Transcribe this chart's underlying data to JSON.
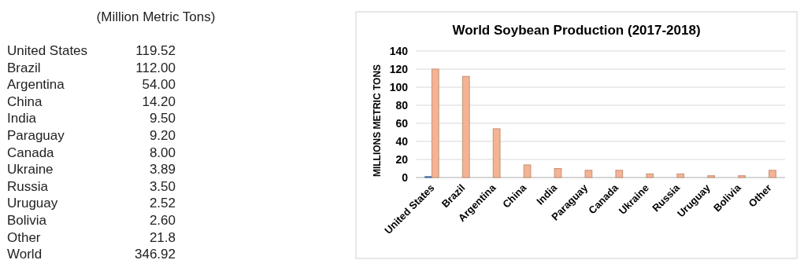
{
  "chart_data": [
    {
      "type": "other",
      "title": "(Million Metric Tons)",
      "categories": [
        "United States",
        "Brazil",
        "Argentina",
        "China",
        "India",
        "Paraguay",
        "Canada",
        "Ukraine",
        "Russia",
        "Uruguay",
        "Bolivia",
        "Other",
        "World"
      ],
      "value_labels": [
        "119.52",
        "112.00",
        "54.00",
        "14.20",
        "9.50",
        "9.20",
        "8.00",
        "3.89",
        "3.50",
        "2.52",
        "2.60",
        "21.8",
        "346.92"
      ]
    },
    {
      "type": "bar",
      "title": "World Soybean Production (2017-2018)",
      "ylabel": "MILLIONS METRIC TONS",
      "categories": [
        "United States",
        "Brazil",
        "Argentina",
        "China",
        "India",
        "Paraguay",
        "Canada",
        "Ukraine",
        "Russia",
        "Uruguay",
        "Bolivia",
        "Other"
      ],
      "series": [
        {
          "color": "#4f81bd",
          "values": [
            1,
            null,
            null,
            null,
            null,
            null,
            null,
            null,
            null,
            null,
            null,
            null
          ]
        },
        {
          "color": "#f4b393",
          "values": [
            120,
            112,
            54,
            14,
            10,
            8,
            8,
            4,
            4,
            2,
            2,
            8
          ]
        }
      ],
      "ylim": [
        0,
        140
      ],
      "yticks": [
        0,
        20,
        40,
        60,
        80,
        100,
        120,
        140
      ],
      "grid": "y"
    }
  ]
}
